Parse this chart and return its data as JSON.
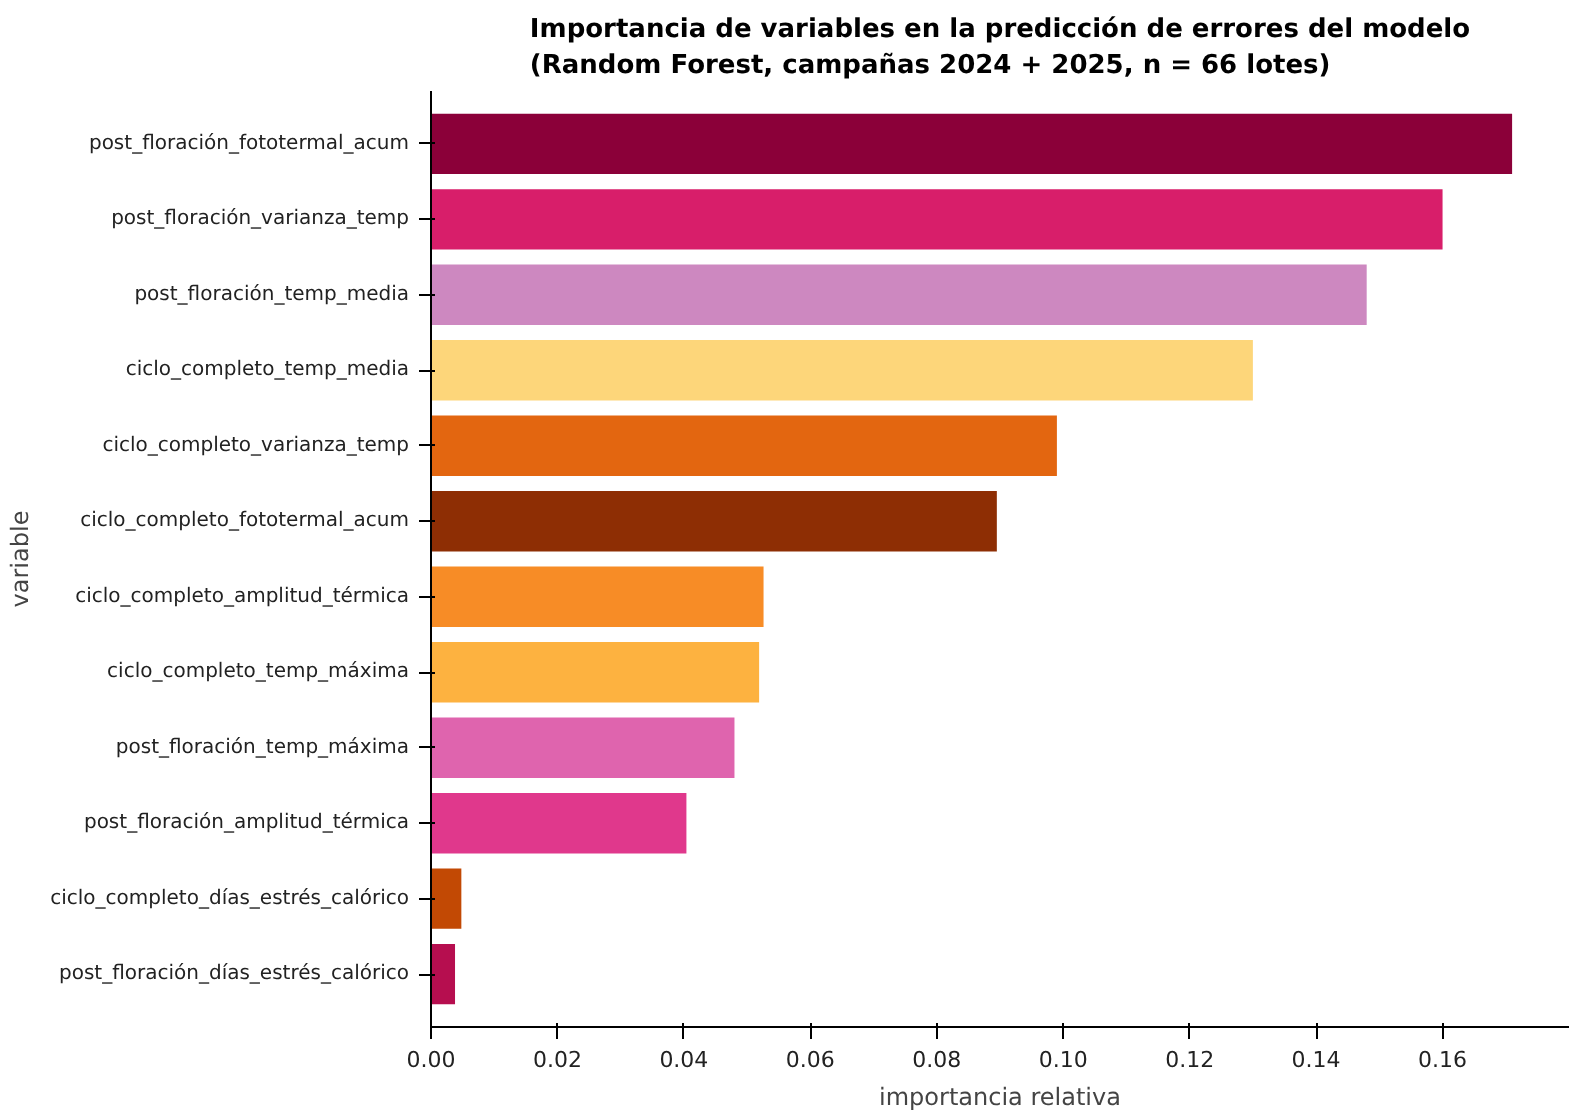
{
  "chart_data": {
    "type": "bar",
    "orientation": "horizontal",
    "title": "Importancia de variables en la predicción de errores del modelo\n(Random Forest, campañas 2024 + 2025, n = 66 lotes)",
    "xlabel": "importancia relativa",
    "ylabel": "variable",
    "categories": [
      "post_floración_fototermal_acum",
      "post_floración_varianza_temp",
      "post_floración_temp_media",
      "ciclo_completo_temp_media",
      "ciclo_completo_varianza_temp",
      "ciclo_completo_fototermal_acum",
      "ciclo_completo_amplitud_térmica",
      "ciclo_completo_temp_máxima",
      "post_floración_temp_máxima",
      "post_floración_amplitud_térmica",
      "ciclo_completo_días_estrés_calórico",
      "post_floración_días_estrés_calórico"
    ],
    "values": [
      0.171,
      0.16,
      0.148,
      0.13,
      0.099,
      0.0895,
      0.0526,
      0.0519,
      0.048,
      0.0404,
      0.0048,
      0.0038
    ],
    "colors": [
      "#8b0039",
      "#d81e6a",
      "#cd88c0",
      "#fdd67a",
      "#e36610",
      "#8e2e04",
      "#f78c26",
      "#fdb240",
      "#df64ae",
      "#e0388c",
      "#c24904",
      "#b60e4f"
    ],
    "xlim": [
      0,
      0.18
    ],
    "xticks": [
      {
        "value": 0,
        "label": "0.00"
      },
      {
        "value": 0.02,
        "label": "0.02"
      },
      {
        "value": 0.04,
        "label": "0.04"
      },
      {
        "value": 0.06,
        "label": "0.06"
      },
      {
        "value": 0.08,
        "label": "0.08"
      },
      {
        "value": 0.1,
        "label": "0.10"
      },
      {
        "value": 0.12,
        "label": "0.12"
      },
      {
        "value": 0.14,
        "label": "0.14"
      },
      {
        "value": 0.16,
        "label": "0.16"
      }
    ],
    "grid": false
  }
}
